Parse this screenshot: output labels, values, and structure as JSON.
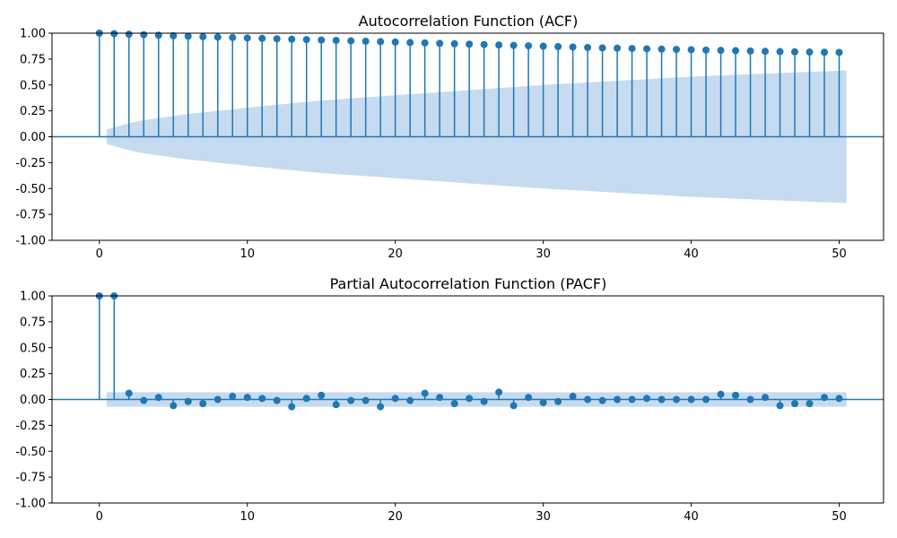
{
  "colors": {
    "stem": "#1f77b4",
    "band": "#c6dbef",
    "axis": "#000000"
  },
  "chart_data": [
    {
      "type": "scatter",
      "title": "Autocorrelation Function (ACF)",
      "xlim": [
        -3.2,
        53
      ],
      "ylim": [
        -1,
        1
      ],
      "xticks": [
        0,
        10,
        20,
        30,
        40,
        50
      ],
      "yticks": [
        -1.0,
        -0.75,
        -0.5,
        -0.25,
        0.0,
        0.25,
        0.5,
        0.75,
        1.0
      ],
      "x": [
        0,
        1,
        2,
        3,
        4,
        5,
        6,
        7,
        8,
        9,
        10,
        11,
        12,
        13,
        14,
        15,
        16,
        17,
        18,
        19,
        20,
        21,
        22,
        23,
        24,
        25,
        26,
        27,
        28,
        29,
        30,
        31,
        32,
        33,
        34,
        35,
        36,
        37,
        38,
        39,
        40,
        41,
        42,
        43,
        44,
        45,
        46,
        47,
        48,
        49,
        50
      ],
      "values": [
        1.0,
        0.995,
        0.99,
        0.985,
        0.98,
        0.975,
        0.97,
        0.966,
        0.962,
        0.958,
        0.954,
        0.95,
        0.946,
        0.942,
        0.938,
        0.934,
        0.93,
        0.926,
        0.922,
        0.918,
        0.914,
        0.91,
        0.906,
        0.902,
        0.898,
        0.894,
        0.89,
        0.886,
        0.882,
        0.878,
        0.874,
        0.87,
        0.866,
        0.862,
        0.858,
        0.855,
        0.852,
        0.849,
        0.846,
        0.843,
        0.84,
        0.837,
        0.834,
        0.831,
        0.828,
        0.825,
        0.822,
        0.82,
        0.818,
        0.816,
        0.814
      ],
      "confidence_band": {
        "x": [
          0.5,
          1,
          2,
          3,
          4,
          5,
          6,
          8,
          10,
          12,
          15,
          20,
          25,
          30,
          35,
          40,
          45,
          50.5
        ],
        "upper": [
          0.07,
          0.09,
          0.13,
          0.16,
          0.18,
          0.2,
          0.22,
          0.25,
          0.28,
          0.31,
          0.35,
          0.4,
          0.45,
          0.5,
          0.54,
          0.58,
          0.61,
          0.64
        ]
      }
    },
    {
      "type": "scatter",
      "title": "Partial Autocorrelation Function (PACF)",
      "xlim": [
        -3.2,
        53
      ],
      "ylim": [
        -1,
        1
      ],
      "xticks": [
        0,
        10,
        20,
        30,
        40,
        50
      ],
      "yticks": [
        -1.0,
        -0.75,
        -0.5,
        -0.25,
        0.0,
        0.25,
        0.5,
        0.75,
        1.0
      ],
      "x": [
        0,
        1,
        2,
        3,
        4,
        5,
        6,
        7,
        8,
        9,
        10,
        11,
        12,
        13,
        14,
        15,
        16,
        17,
        18,
        19,
        20,
        21,
        22,
        23,
        24,
        25,
        26,
        27,
        28,
        29,
        30,
        31,
        32,
        33,
        34,
        35,
        36,
        37,
        38,
        39,
        40,
        41,
        42,
        43,
        44,
        45,
        46,
        47,
        48,
        49,
        50
      ],
      "values": [
        1.0,
        1.0,
        0.06,
        -0.01,
        0.02,
        -0.06,
        -0.02,
        -0.04,
        0.0,
        0.03,
        0.02,
        0.01,
        -0.01,
        -0.07,
        0.01,
        0.04,
        -0.05,
        -0.01,
        -0.01,
        -0.07,
        0.01,
        -0.01,
        0.06,
        0.02,
        -0.04,
        0.01,
        -0.02,
        0.07,
        -0.06,
        0.02,
        -0.03,
        -0.02,
        0.03,
        0.0,
        -0.01,
        0.0,
        0.0,
        0.01,
        0.0,
        0.0,
        0.0,
        0.0,
        0.05,
        0.04,
        0.0,
        0.02,
        -0.06,
        -0.04,
        -0.04,
        0.02,
        0.01
      ],
      "confidence_band": {
        "x": [
          0.5,
          50.5
        ],
        "upper": [
          0.07,
          0.07
        ]
      }
    }
  ]
}
